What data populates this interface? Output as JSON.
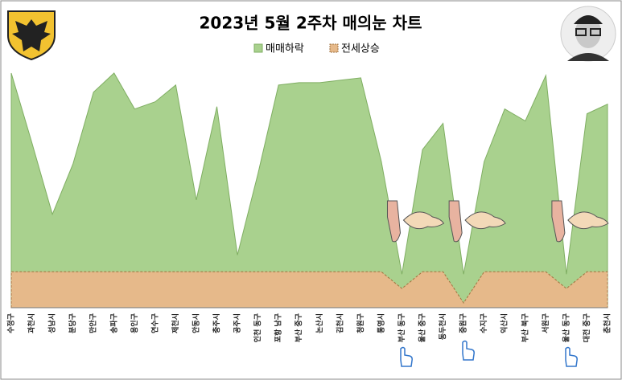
{
  "chart_data": {
    "type": "area",
    "title": "2023년 5월 2주차 매의눈 차트",
    "categories": [
      "수정구",
      "과천시",
      "성남시",
      "분당구",
      "만안구",
      "송파구",
      "용인구",
      "연수구",
      "제천시",
      "안동시",
      "충주시",
      "공주시",
      "인천 동구",
      "포항 남구",
      "부산 중구",
      "논산시",
      "김천시",
      "청원구",
      "통영시",
      "부산 동구",
      "울산 중구",
      "동두천시",
      "중원구",
      "수지구",
      "익산시",
      "부산 북구",
      "서원구",
      "울산 동구",
      "대전 중구",
      "춘천시"
    ],
    "series": [
      {
        "name": "매매하락",
        "color": "#a9d18e",
        "values": [
          98,
          69,
          39,
          60,
          90,
          98,
          83,
          86,
          93,
          45,
          84,
          22,
          56,
          93,
          94,
          94,
          95,
          96,
          61,
          14,
          66,
          77,
          14,
          61,
          83,
          78,
          97,
          14,
          81,
          85
        ]
      },
      {
        "name": "전세상승",
        "color": "#e6b98a",
        "values": [
          15,
          15,
          15,
          15,
          15,
          15,
          15,
          15,
          15,
          15,
          15,
          15,
          15,
          15,
          15,
          15,
          15,
          15,
          15,
          8,
          15,
          15,
          2,
          15,
          15,
          15,
          15,
          8,
          15,
          15
        ]
      }
    ],
    "ylim": [
      0,
      100
    ]
  }
}
